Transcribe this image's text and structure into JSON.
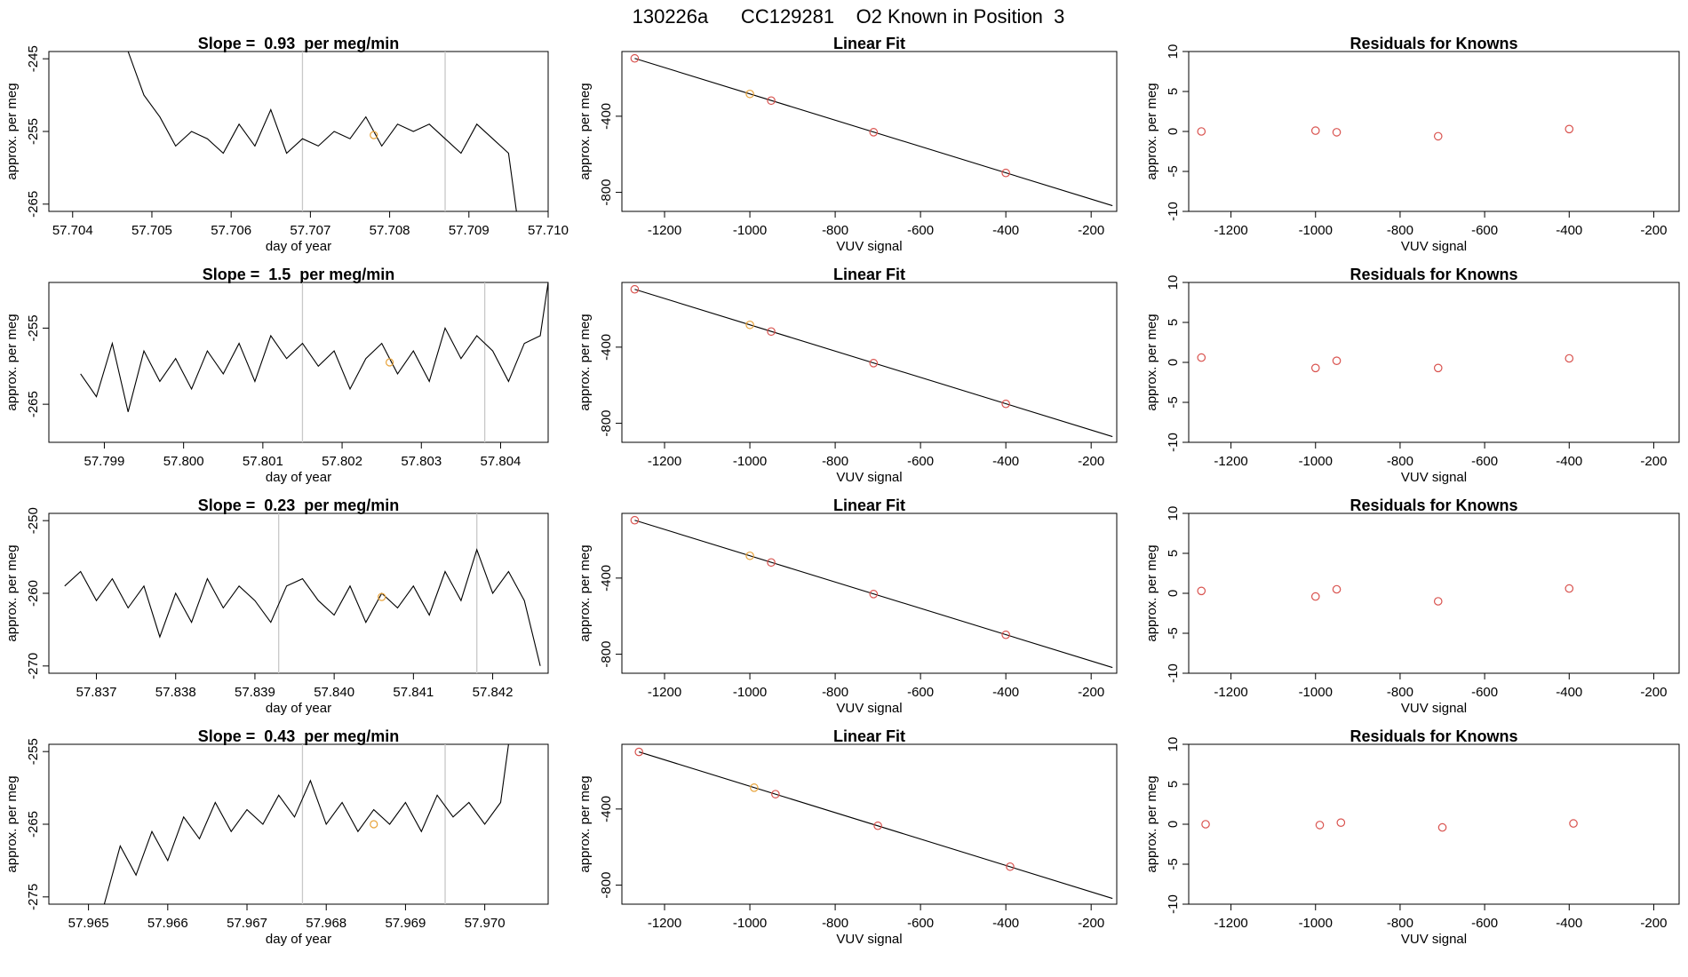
{
  "page_title": "130226a      CC129281    O2 Known in Position  3",
  "colors": {
    "frame": "#000000",
    "trace": "#000000",
    "marker_vline": "#c8c8c8",
    "known_point": "#e8a33a",
    "point": "#d9534f",
    "fit_line": "#000000"
  },
  "chart_data": [
    {
      "type": "line",
      "title": "Slope =  0.93  per meg/min",
      "xlabel": "day of year",
      "ylabel": "approx. per meg",
      "xlim": [
        57.7037,
        57.71
      ],
      "ylim": [
        -266,
        -244
      ],
      "xticks": [
        57.704,
        57.705,
        57.706,
        57.707,
        57.708,
        57.709,
        57.71
      ],
      "xtick_labels": [
        "57.704",
        "57.705",
        "57.706",
        "57.707",
        "57.708",
        "57.709",
        "57.710"
      ],
      "yticks": [
        -245,
        -255,
        -265
      ],
      "ytick_labels": [
        "-245",
        "-255",
        "-265"
      ],
      "vlines": [
        57.7069,
        57.7087
      ],
      "highlight": {
        "x": 57.7078,
        "y": -255.5
      },
      "series": [
        {
          "x": [
            57.7047,
            57.7049,
            57.7051,
            57.7053,
            57.7055,
            57.7057,
            57.7059,
            57.7061,
            57.7063,
            57.7065,
            57.7067,
            57.7069,
            57.7071,
            57.7073,
            57.7075,
            57.7077,
            57.7079,
            57.7081,
            57.7083,
            57.7085,
            57.7087,
            57.7089,
            57.7091,
            57.7093,
            57.7095,
            57.7096
          ],
          "y": [
            -244,
            -250,
            -253,
            -257,
            -255,
            -256,
            -258,
            -254,
            -257,
            -252,
            -258,
            -256,
            -257,
            -255,
            -256,
            -253,
            -257,
            -254,
            -255,
            -254,
            -256,
            -258,
            -254,
            -256,
            -258,
            -266
          ]
        }
      ]
    },
    {
      "type": "line",
      "title": "Linear Fit",
      "xlabel": "VUV signal",
      "ylabel": "approx. per meg",
      "xlim": [
        -1300,
        -140
      ],
      "ylim": [
        -900,
        -60
      ],
      "xticks": [
        -1200,
        -1000,
        -800,
        -600,
        -400,
        -200
      ],
      "xtick_labels": [
        "-1200",
        "-1000",
        "-800",
        "-600",
        "-400",
        "-200"
      ],
      "yticks": [
        -400,
        -800
      ],
      "ytick_labels": [
        "-400",
        "-800"
      ],
      "fit_line": {
        "x": [
          -1270,
          -150
        ],
        "y": [
          -96,
          -870
        ]
      },
      "points": [
        {
          "x": -1270,
          "y": -96,
          "known": false
        },
        {
          "x": -1000,
          "y": -283,
          "known": true
        },
        {
          "x": -950,
          "y": -318,
          "known": false
        },
        {
          "x": -710,
          "y": -484,
          "known": false
        },
        {
          "x": -400,
          "y": -698,
          "known": false
        }
      ]
    },
    {
      "type": "scatter",
      "title": "Residuals for Knowns",
      "xlabel": "VUV signal",
      "ylabel": "approx. per meg",
      "xlim": [
        -1300,
        -140
      ],
      "ylim": [
        -10,
        10
      ],
      "xticks": [
        -1200,
        -1000,
        -800,
        -600,
        -400,
        -200
      ],
      "xtick_labels": [
        "-1200",
        "-1000",
        "-800",
        "-600",
        "-400",
        "-200"
      ],
      "yticks": [
        10,
        5,
        0,
        -5,
        -10
      ],
      "ytick_labels": [
        "10",
        "5",
        "0",
        "-5",
        "-10"
      ],
      "points": [
        {
          "x": -1270,
          "y": 0.0
        },
        {
          "x": -1000,
          "y": 0.1
        },
        {
          "x": -950,
          "y": -0.1
        },
        {
          "x": -710,
          "y": -0.6
        },
        {
          "x": -400,
          "y": 0.3
        }
      ]
    },
    {
      "type": "line",
      "title": "Slope =  1.5  per meg/min",
      "xlabel": "day of year",
      "ylabel": "approx. per meg",
      "xlim": [
        57.7983,
        57.8046
      ],
      "ylim": [
        -270,
        -249
      ],
      "xticks": [
        57.799,
        57.8,
        57.801,
        57.802,
        57.803,
        57.804
      ],
      "xtick_labels": [
        "57.799",
        "57.800",
        "57.801",
        "57.802",
        "57.803",
        "57.804"
      ],
      "yticks": [
        -255,
        -265
      ],
      "ytick_labels": [
        "-255",
        "-265"
      ],
      "vlines": [
        57.8015,
        57.8038
      ],
      "highlight": {
        "x": 57.8026,
        "y": -259.5
      },
      "series": [
        {
          "x": [
            57.7987,
            57.7989,
            57.7991,
            57.7993,
            57.7995,
            57.7997,
            57.7999,
            57.8001,
            57.8003,
            57.8005,
            57.8007,
            57.8009,
            57.8011,
            57.8013,
            57.8015,
            57.8017,
            57.8019,
            57.8021,
            57.8023,
            57.8025,
            57.8027,
            57.8029,
            57.8031,
            57.8033,
            57.8035,
            57.8037,
            57.8039,
            57.8041,
            57.8043,
            57.8045,
            57.8046
          ],
          "y": [
            -261,
            -264,
            -257,
            -266,
            -258,
            -262,
            -259,
            -263,
            -258,
            -261,
            -257,
            -262,
            -256,
            -259,
            -257,
            -260,
            -258,
            -263,
            -259,
            -257,
            -261,
            -258,
            -262,
            -255,
            -259,
            -256,
            -258,
            -262,
            -257,
            -256,
            -249
          ]
        }
      ]
    },
    {
      "type": "line",
      "title": "Linear Fit",
      "xlabel": "VUV signal",
      "ylabel": "approx. per meg",
      "xlim": [
        -1300,
        -140
      ],
      "ylim": [
        -900,
        -60
      ],
      "xticks": [
        -1200,
        -1000,
        -800,
        -600,
        -400,
        -200
      ],
      "xtick_labels": [
        "-1200",
        "-1000",
        "-800",
        "-600",
        "-400",
        "-200"
      ],
      "yticks": [
        -400,
        -800
      ],
      "ytick_labels": [
        "-400",
        "-800"
      ],
      "fit_line": {
        "x": [
          -1270,
          -150
        ],
        "y": [
          -96,
          -870
        ]
      },
      "points": [
        {
          "x": -1270,
          "y": -96,
          "known": false
        },
        {
          "x": -1000,
          "y": -283,
          "known": true
        },
        {
          "x": -950,
          "y": -318,
          "known": false
        },
        {
          "x": -710,
          "y": -484,
          "known": false
        },
        {
          "x": -400,
          "y": -698,
          "known": false
        }
      ]
    },
    {
      "type": "scatter",
      "title": "Residuals for Knowns",
      "xlabel": "VUV signal",
      "ylabel": "approx. per meg",
      "xlim": [
        -1300,
        -140
      ],
      "ylim": [
        -10,
        10
      ],
      "xticks": [
        -1200,
        -1000,
        -800,
        -600,
        -400,
        -200
      ],
      "xtick_labels": [
        "-1200",
        "-1000",
        "-800",
        "-600",
        "-400",
        "-200"
      ],
      "yticks": [
        10,
        5,
        0,
        -5,
        -10
      ],
      "ytick_labels": [
        "10",
        "5",
        "0",
        "-5",
        "-10"
      ],
      "points": [
        {
          "x": -1270,
          "y": 0.6
        },
        {
          "x": -1000,
          "y": -0.7
        },
        {
          "x": -950,
          "y": 0.2
        },
        {
          "x": -710,
          "y": -0.7
        },
        {
          "x": -400,
          "y": 0.5
        }
      ]
    },
    {
      "type": "line",
      "title": "Slope =  0.23  per meg/min",
      "xlabel": "day of year",
      "ylabel": "approx. per meg",
      "xlim": [
        57.8364,
        57.8427
      ],
      "ylim": [
        -271,
        -249
      ],
      "xticks": [
        57.837,
        57.838,
        57.839,
        57.84,
        57.841,
        57.842
      ],
      "xtick_labels": [
        "57.837",
        "57.838",
        "57.839",
        "57.840",
        "57.841",
        "57.842"
      ],
      "yticks": [
        -250,
        -260,
        -270
      ],
      "ytick_labels": [
        "-250",
        "-260",
        "-270"
      ],
      "vlines": [
        57.8393,
        57.8418
      ],
      "highlight": {
        "x": 57.8406,
        "y": -260.5
      },
      "series": [
        {
          "x": [
            57.8366,
            57.8368,
            57.837,
            57.8372,
            57.8374,
            57.8376,
            57.8378,
            57.838,
            57.8382,
            57.8384,
            57.8386,
            57.8388,
            57.839,
            57.8392,
            57.8394,
            57.8396,
            57.8398,
            57.84,
            57.8402,
            57.8404,
            57.8406,
            57.8408,
            57.841,
            57.8412,
            57.8414,
            57.8416,
            57.8418,
            57.842,
            57.8422,
            57.8424,
            57.8426
          ],
          "y": [
            -259,
            -257,
            -261,
            -258,
            -262,
            -259,
            -266,
            -260,
            -264,
            -258,
            -262,
            -259,
            -261,
            -264,
            -259,
            -258,
            -261,
            -263,
            -259,
            -264,
            -260,
            -262,
            -259,
            -263,
            -257,
            -261,
            -254,
            -260,
            -257,
            -261,
            -270
          ]
        }
      ]
    },
    {
      "type": "line",
      "title": "Linear Fit",
      "xlabel": "VUV signal",
      "ylabel": "approx. per meg",
      "xlim": [
        -1300,
        -140
      ],
      "ylim": [
        -900,
        -60
      ],
      "xticks": [
        -1200,
        -1000,
        -800,
        -600,
        -400,
        -200
      ],
      "xtick_labels": [
        "-1200",
        "-1000",
        "-800",
        "-600",
        "-400",
        "-200"
      ],
      "yticks": [
        -400,
        -800
      ],
      "ytick_labels": [
        "-400",
        "-800"
      ],
      "fit_line": {
        "x": [
          -1270,
          -150
        ],
        "y": [
          -96,
          -870
        ]
      },
      "points": [
        {
          "x": -1270,
          "y": -96,
          "known": false
        },
        {
          "x": -1000,
          "y": -283,
          "known": true
        },
        {
          "x": -950,
          "y": -318,
          "known": false
        },
        {
          "x": -710,
          "y": -484,
          "known": false
        },
        {
          "x": -400,
          "y": -698,
          "known": false
        }
      ]
    },
    {
      "type": "scatter",
      "title": "Residuals for Knowns",
      "xlabel": "VUV signal",
      "ylabel": "approx. per meg",
      "xlim": [
        -1300,
        -140
      ],
      "ylim": [
        -10,
        10
      ],
      "xticks": [
        -1200,
        -1000,
        -800,
        -600,
        -400,
        -200
      ],
      "xtick_labels": [
        "-1200",
        "-1000",
        "-800",
        "-600",
        "-400",
        "-200"
      ],
      "yticks": [
        10,
        5,
        0,
        -5,
        -10
      ],
      "ytick_labels": [
        "10",
        "5",
        "0",
        "-5",
        "-10"
      ],
      "points": [
        {
          "x": -1270,
          "y": 0.3
        },
        {
          "x": -1000,
          "y": -0.4
        },
        {
          "x": -950,
          "y": 0.5
        },
        {
          "x": -710,
          "y": -1.0
        },
        {
          "x": -400,
          "y": 0.6
        }
      ]
    },
    {
      "type": "line",
      "title": "Slope =  0.43  per meg/min",
      "xlabel": "day of year",
      "ylabel": "approx. per meg",
      "xlim": [
        57.9645,
        57.9708
      ],
      "ylim": [
        -276,
        -254
      ],
      "xticks": [
        57.965,
        57.966,
        57.967,
        57.968,
        57.969,
        57.97
      ],
      "xtick_labels": [
        "57.965",
        "57.966",
        "57.967",
        "57.968",
        "57.969",
        "57.970"
      ],
      "yticks": [
        -255,
        -265,
        -275
      ],
      "ytick_labels": [
        "-255",
        "-265",
        "-275"
      ],
      "vlines": [
        57.9677,
        57.9695
      ],
      "highlight": {
        "x": 57.9686,
        "y": -265.0
      },
      "series": [
        {
          "x": [
            57.9652,
            57.9654,
            57.9656,
            57.9658,
            57.966,
            57.9662,
            57.9664,
            57.9666,
            57.9668,
            57.967,
            57.9672,
            57.9674,
            57.9676,
            57.9678,
            57.968,
            57.9682,
            57.9684,
            57.9686,
            57.9688,
            57.969,
            57.9692,
            57.9694,
            57.9696,
            57.9698,
            57.97,
            57.9702,
            57.9703
          ],
          "y": [
            -276,
            -268,
            -272,
            -266,
            -270,
            -264,
            -267,
            -262,
            -266,
            -263,
            -265,
            -261,
            -264,
            -259,
            -265,
            -262,
            -266,
            -263,
            -265,
            -262,
            -266,
            -261,
            -264,
            -262,
            -265,
            -262,
            -254
          ]
        }
      ]
    },
    {
      "type": "line",
      "title": "Linear Fit",
      "xlabel": "VUV signal",
      "ylabel": "approx. per meg",
      "xlim": [
        -1300,
        -140
      ],
      "ylim": [
        -900,
        -60
      ],
      "xticks": [
        -1200,
        -1000,
        -800,
        -600,
        -400,
        -200
      ],
      "xtick_labels": [
        "-1200",
        "-1000",
        "-800",
        "-600",
        "-400",
        "-200"
      ],
      "yticks": [
        -400,
        -800
      ],
      "ytick_labels": [
        "-400",
        "-800"
      ],
      "fit_line": {
        "x": [
          -1260,
          -150
        ],
        "y": [
          -100,
          -870
        ]
      },
      "points": [
        {
          "x": -1260,
          "y": -100,
          "known": false
        },
        {
          "x": -990,
          "y": -288,
          "known": true
        },
        {
          "x": -940,
          "y": -322,
          "known": false
        },
        {
          "x": -700,
          "y": -488,
          "known": false
        },
        {
          "x": -390,
          "y": -703,
          "known": false
        }
      ]
    },
    {
      "type": "scatter",
      "title": "Residuals for Knowns",
      "xlabel": "VUV signal",
      "ylabel": "approx. per meg",
      "xlim": [
        -1300,
        -140
      ],
      "ylim": [
        -10,
        10
      ],
      "xticks": [
        -1200,
        -1000,
        -800,
        -600,
        -400,
        -200
      ],
      "xtick_labels": [
        "-1200",
        "-1000",
        "-800",
        "-600",
        "-400",
        "-200"
      ],
      "yticks": [
        10,
        5,
        0,
        -5,
        -10
      ],
      "ytick_labels": [
        "10",
        "5",
        "0",
        "-5",
        "-10"
      ],
      "points": [
        {
          "x": -1260,
          "y": 0.0
        },
        {
          "x": -990,
          "y": -0.1
        },
        {
          "x": -940,
          "y": 0.2
        },
        {
          "x": -700,
          "y": -0.4
        },
        {
          "x": -390,
          "y": 0.1
        }
      ]
    }
  ]
}
